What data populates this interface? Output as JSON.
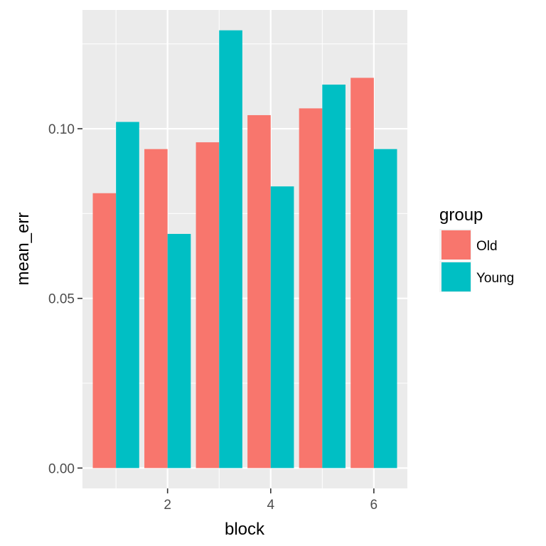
{
  "chart_data": {
    "type": "bar",
    "x": [
      1,
      2,
      3,
      4,
      5,
      6
    ],
    "xticks": [
      "2",
      "4",
      "6"
    ],
    "yticks": [
      "0.00",
      "0.05",
      "0.10"
    ],
    "xlabel": "block",
    "ylabel": "mean_err",
    "ylim": [
      -0.006,
      0.135
    ],
    "xlim": [
      0.35,
      6.65
    ],
    "grid": true,
    "legend": {
      "title": "group",
      "position": "right"
    },
    "series": [
      {
        "name": "Old",
        "color": "#F8766D",
        "values": [
          0.081,
          0.094,
          0.096,
          0.104,
          0.106,
          0.115
        ]
      },
      {
        "name": "Young",
        "color": "#00BFC4",
        "values": [
          0.102,
          0.069,
          0.129,
          0.083,
          0.113,
          0.094
        ]
      }
    ]
  }
}
